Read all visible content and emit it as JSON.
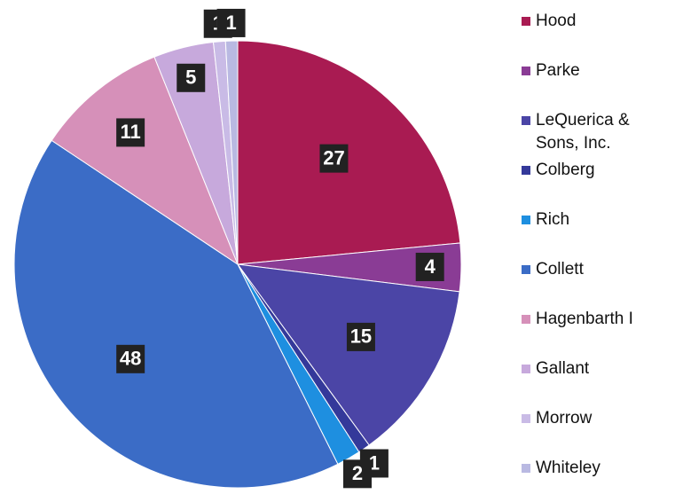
{
  "chart_data": {
    "type": "pie",
    "categories": [
      "Hood",
      "Parke",
      "LeQuerica & Sons, Inc.",
      "Colberg",
      "Rich",
      "Collett",
      "Hagenbarth I",
      "Gallant",
      "Morrow",
      "Whiteley"
    ],
    "values": [
      27,
      4,
      15,
      1,
      2,
      48,
      11,
      5,
      1,
      1
    ],
    "colors": [
      "#a91b52",
      "#8a3c95",
      "#4b45a6",
      "#34399a",
      "#1e8fe0",
      "#3b6cc6",
      "#d690b9",
      "#c7a9dc",
      "#c9bbe6",
      "#b9b9e2"
    ],
    "legend": "right"
  }
}
